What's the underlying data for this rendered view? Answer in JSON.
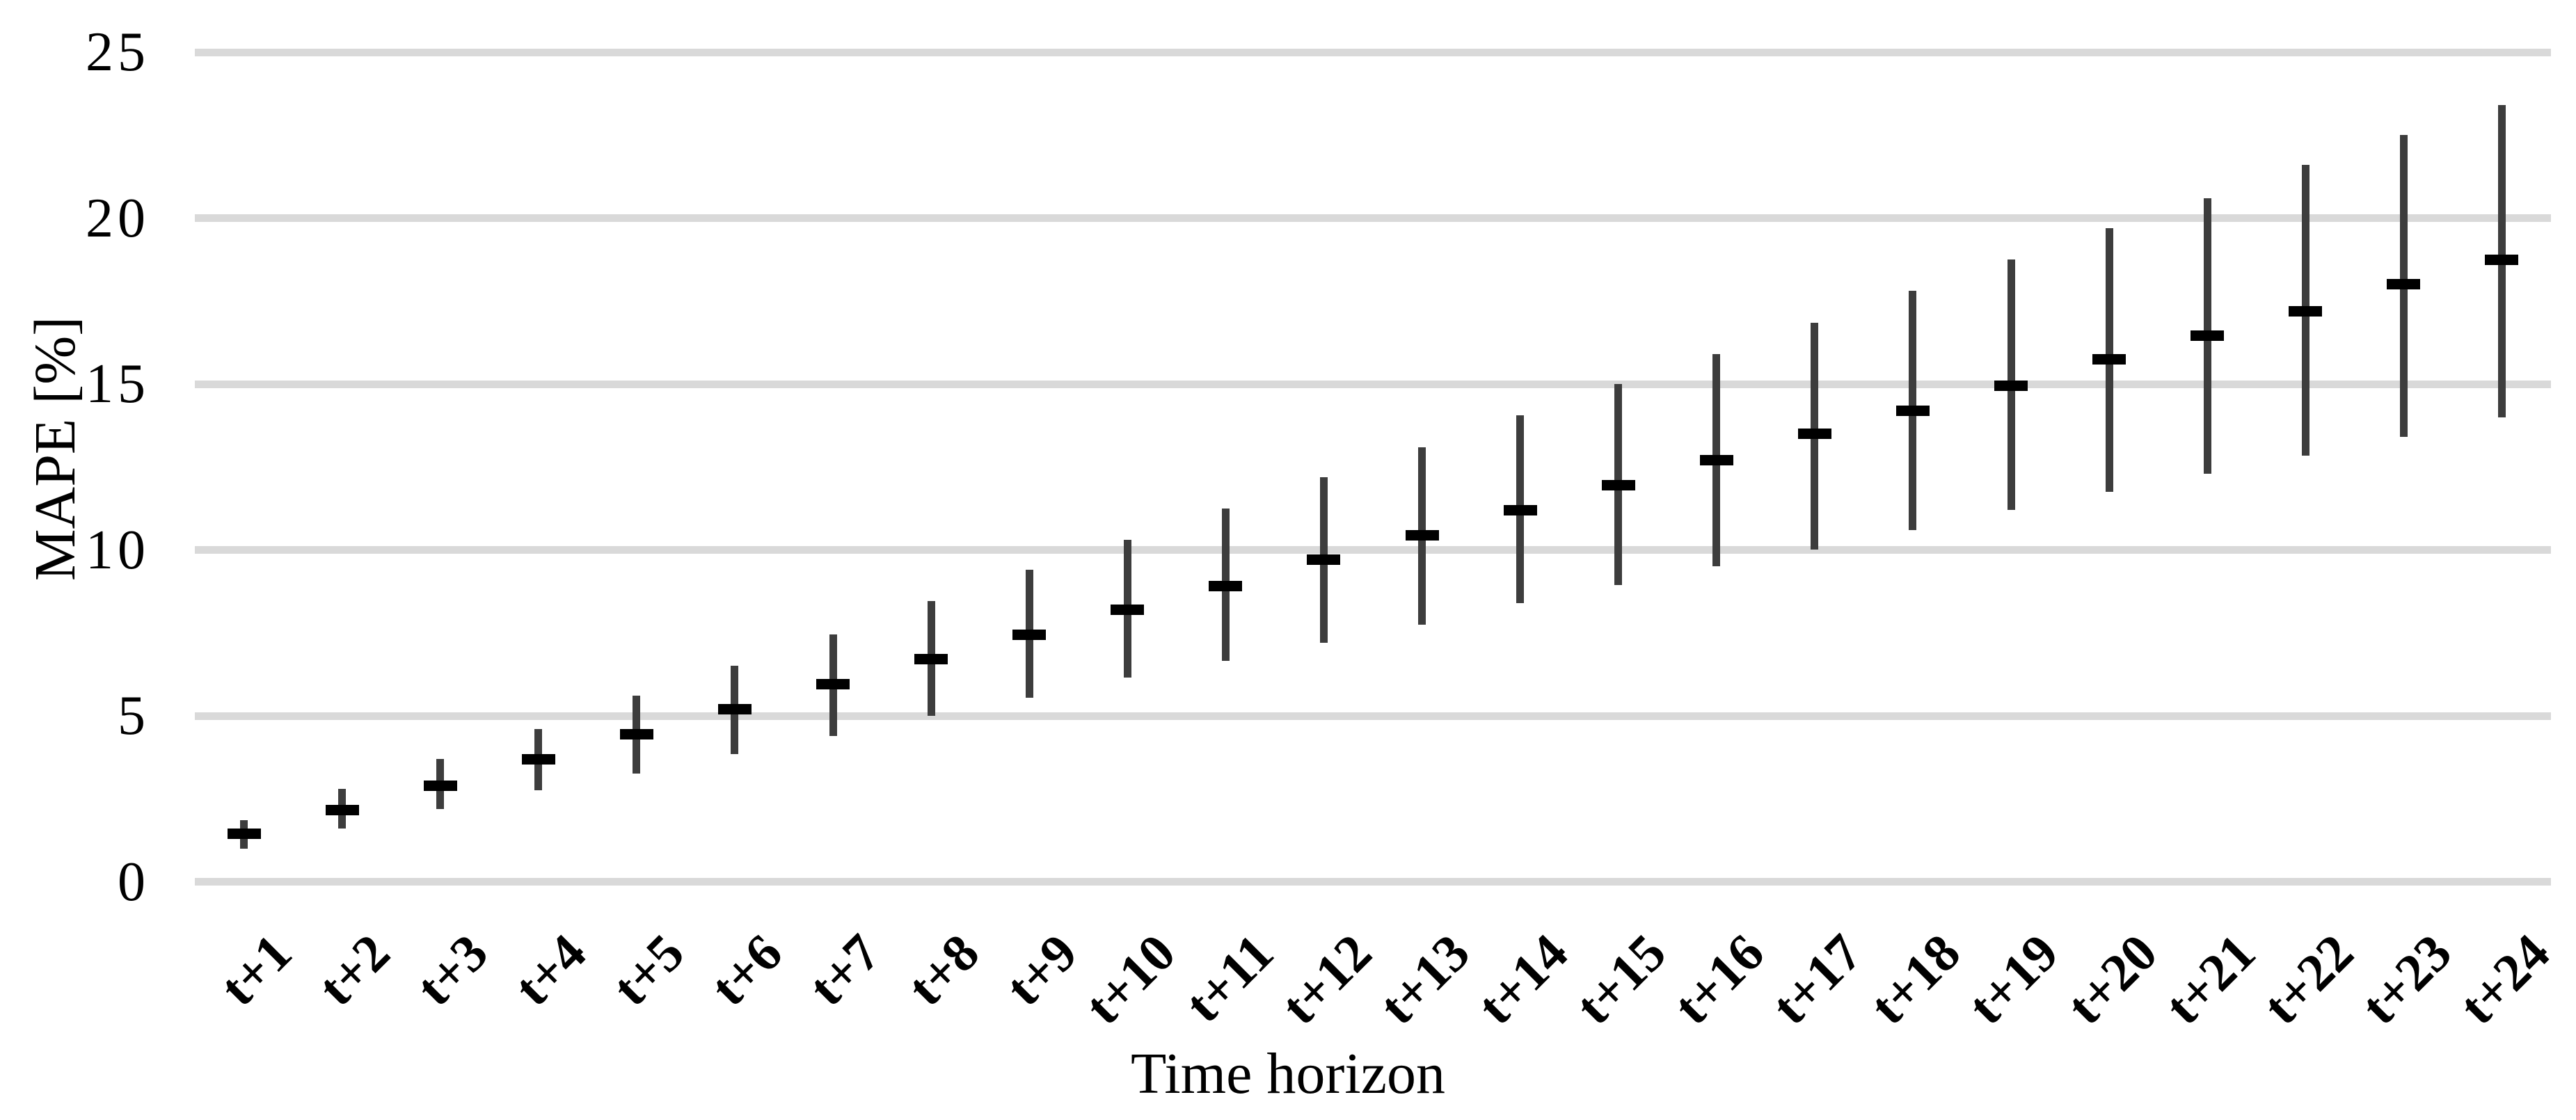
{
  "chart_data": {
    "type": "scatter",
    "subtype": "mean-with-error-bars",
    "title": "",
    "xlabel": "Time horizon",
    "ylabel": "MAPE [%]",
    "ylim": [
      0,
      25
    ],
    "yticks": [
      0,
      5,
      10,
      15,
      20,
      25
    ],
    "grid": true,
    "legend": false,
    "categories": [
      "t+1",
      "t+2",
      "t+3",
      "t+4",
      "t+5",
      "t+6",
      "t+7",
      "t+8",
      "t+9",
      "t+10",
      "t+11",
      "t+12",
      "t+13",
      "t+14",
      "t+15",
      "t+16",
      "t+17",
      "t+18",
      "t+19",
      "t+20",
      "t+21",
      "t+22",
      "t+23",
      "t+24"
    ],
    "series": [
      {
        "name": "MAPE mean",
        "marker": "horizontal-dash",
        "values": [
          1.45,
          2.15,
          2.9,
          3.7,
          4.45,
          5.2,
          5.95,
          6.7,
          7.45,
          8.2,
          8.9,
          9.7,
          10.45,
          11.2,
          11.95,
          12.7,
          13.5,
          14.2,
          14.95,
          15.75,
          16.45,
          17.2,
          18.0,
          18.75
        ]
      },
      {
        "name": "error bar low",
        "marker": "vertical-line-bottom",
        "values": [
          1.0,
          1.6,
          2.2,
          2.75,
          3.25,
          3.85,
          4.4,
          5.0,
          5.55,
          6.15,
          6.65,
          7.2,
          7.75,
          8.4,
          8.95,
          9.5,
          10.0,
          10.6,
          11.2,
          11.75,
          12.3,
          12.85,
          13.4,
          14.0
        ]
      },
      {
        "name": "error bar high",
        "marker": "vertical-line-top",
        "values": [
          1.85,
          2.8,
          3.7,
          4.6,
          5.6,
          6.5,
          7.45,
          8.45,
          9.4,
          10.3,
          11.25,
          12.2,
          13.1,
          14.05,
          15.0,
          15.9,
          16.85,
          17.8,
          18.75,
          19.7,
          20.6,
          21.6,
          22.5,
          23.4
        ]
      }
    ]
  },
  "colors": {
    "background": "#ffffff",
    "gridline": "#d9d9d9",
    "error_bar": "#3d3d3d",
    "mean_marker": "#000000",
    "text": "#000000"
  }
}
